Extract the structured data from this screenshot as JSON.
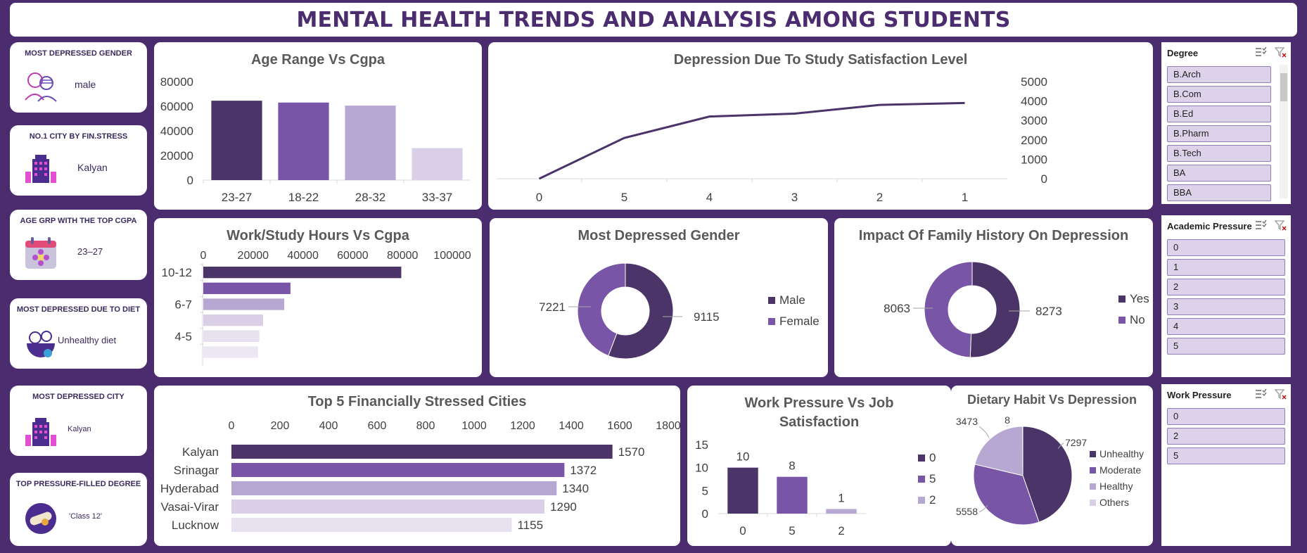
{
  "title": "MENTAL HEALTH TRENDS AND ANALYSIS AMONG STUDENTS",
  "colors": {
    "c1": "#4b3468",
    "c2": "#7855a6",
    "c3": "#b7a7d3",
    "c4": "#d9d0e8",
    "c5": "#e6e0ef",
    "c6": "#ece7f3",
    "bg": "#4b2d6f"
  },
  "kpis": [
    {
      "title": "MOST DEPRESSED GENDER",
      "value": "male",
      "icon": "people-icon"
    },
    {
      "title": "NO.1 CITY BY FIN.STRESS",
      "value": "Kalyan",
      "icon": "city-building-icon"
    },
    {
      "title": "AGE GRP WITH THE TOP CGPA",
      "value": "23–27",
      "icon": "calendar-flower-icon"
    },
    {
      "title": "MOST DEPRESSED DUE TO DIET",
      "value": "Unhealthy diet",
      "icon": "food-bowl-icon"
    },
    {
      "title": "MOST DEPRESSED CITY",
      "value": "Kalyan",
      "icon": "city-building-icon"
    },
    {
      "title": "TOP PRESSURE-FILLED DEGREE",
      "value": "'Class 12'",
      "icon": "diploma-icon"
    }
  ],
  "chart_data": [
    {
      "id": "age_cgpa",
      "type": "bar",
      "title": "Age Range Vs Cgpa",
      "categories": [
        "23-27",
        "18-22",
        "28-32",
        "33-37"
      ],
      "values": [
        64500,
        63000,
        60500,
        26000
      ],
      "yticks": [
        "80000",
        "60000",
        "40000",
        "20000",
        "0"
      ],
      "ylim": [
        0,
        80000
      ]
    },
    {
      "id": "study_sat",
      "type": "line",
      "title": "Depression Due To Study Satisfaction Level",
      "categories": [
        "0",
        "5",
        "4",
        "3",
        "2",
        "1"
      ],
      "values": [
        0,
        2100,
        3200,
        3350,
        3800,
        3900
      ],
      "yticks": [
        "5000",
        "4000",
        "3000",
        "2000",
        "1000",
        "0"
      ],
      "ylim": [
        0,
        5000
      ]
    },
    {
      "id": "hours_cgpa",
      "type": "bar",
      "title": "Work/Study Hours Vs Cgpa",
      "orientation": "horizontal",
      "categories": [
        "10-12",
        "",
        "6-7",
        "",
        "4-5",
        ""
      ],
      "values": [
        79500,
        35000,
        32500,
        24000,
        22500,
        22000
      ],
      "xticks": [
        "0",
        "20000",
        "40000",
        "60000",
        "80000",
        "100000"
      ],
      "xlim": [
        0,
        100000
      ]
    },
    {
      "id": "gender",
      "type": "pie",
      "variant": "donut",
      "title": "Most Depressed Gender",
      "slices": [
        {
          "label": "Male",
          "value": 9115,
          "value_label": "9115"
        },
        {
          "label": "Female",
          "value": 7221,
          "value_label": "7221"
        }
      ]
    },
    {
      "id": "family",
      "type": "pie",
      "variant": "donut",
      "title": "Impact Of Family History On Depression",
      "slices": [
        {
          "label": "Yes",
          "value": 8273,
          "value_label": "8273"
        },
        {
          "label": "No",
          "value": 8063,
          "value_label": "8063"
        }
      ]
    },
    {
      "id": "fin_cities",
      "type": "bar",
      "orientation": "horizontal",
      "title": "Top 5 Financially Stressed Cities",
      "categories": [
        "Kalyan",
        "Srinagar",
        "Hyderabad",
        "Vasai-Virar",
        "Lucknow"
      ],
      "values": [
        1570,
        1372,
        1340,
        1290,
        1155
      ],
      "value_labels": [
        "1570",
        "1372",
        "1340",
        "1290",
        "1155"
      ],
      "xticks": [
        "0",
        "200",
        "400",
        "600",
        "800",
        "1000",
        "1200",
        "1400",
        "1600",
        "1800"
      ],
      "xlim": [
        0,
        1800
      ]
    },
    {
      "id": "work_job",
      "type": "bar",
      "title": "Work Pressure Vs Job Satisfaction",
      "title_lines": [
        "Work Pressure Vs Job",
        "Satisfaction"
      ],
      "categories": [
        "0",
        "5",
        "2"
      ],
      "values": [
        10,
        8,
        1
      ],
      "value_labels": [
        "10",
        "8",
        "1"
      ],
      "yticks": [
        "15",
        "10",
        "5",
        "0"
      ],
      "ylim": [
        0,
        15
      ],
      "legend": [
        "0",
        "5",
        "2"
      ]
    },
    {
      "id": "diet",
      "type": "pie",
      "title": "Dietary Habit Vs Depression",
      "slices": [
        {
          "label": "Unhealthy",
          "value": 7297,
          "value_label": "7297"
        },
        {
          "label": "Moderate",
          "value": 5558,
          "value_label": "5558"
        },
        {
          "label": "Healthy",
          "value": 3473,
          "value_label": "3473"
        },
        {
          "label": "Others",
          "value": 8,
          "value_label": "8"
        }
      ]
    }
  ],
  "slicers": [
    {
      "id": "degree",
      "title": "Degree",
      "items": [
        "B.Arch",
        "B.Com",
        "B.Ed",
        "B.Pharm",
        "B.Tech",
        "BA",
        "BBA"
      ]
    },
    {
      "id": "academic",
      "title": "Academic Pressure",
      "items": [
        "0",
        "1",
        "2",
        "3",
        "4",
        "5"
      ]
    },
    {
      "id": "work",
      "title": "Work Pressure",
      "items": [
        "0",
        "2",
        "5"
      ]
    }
  ]
}
